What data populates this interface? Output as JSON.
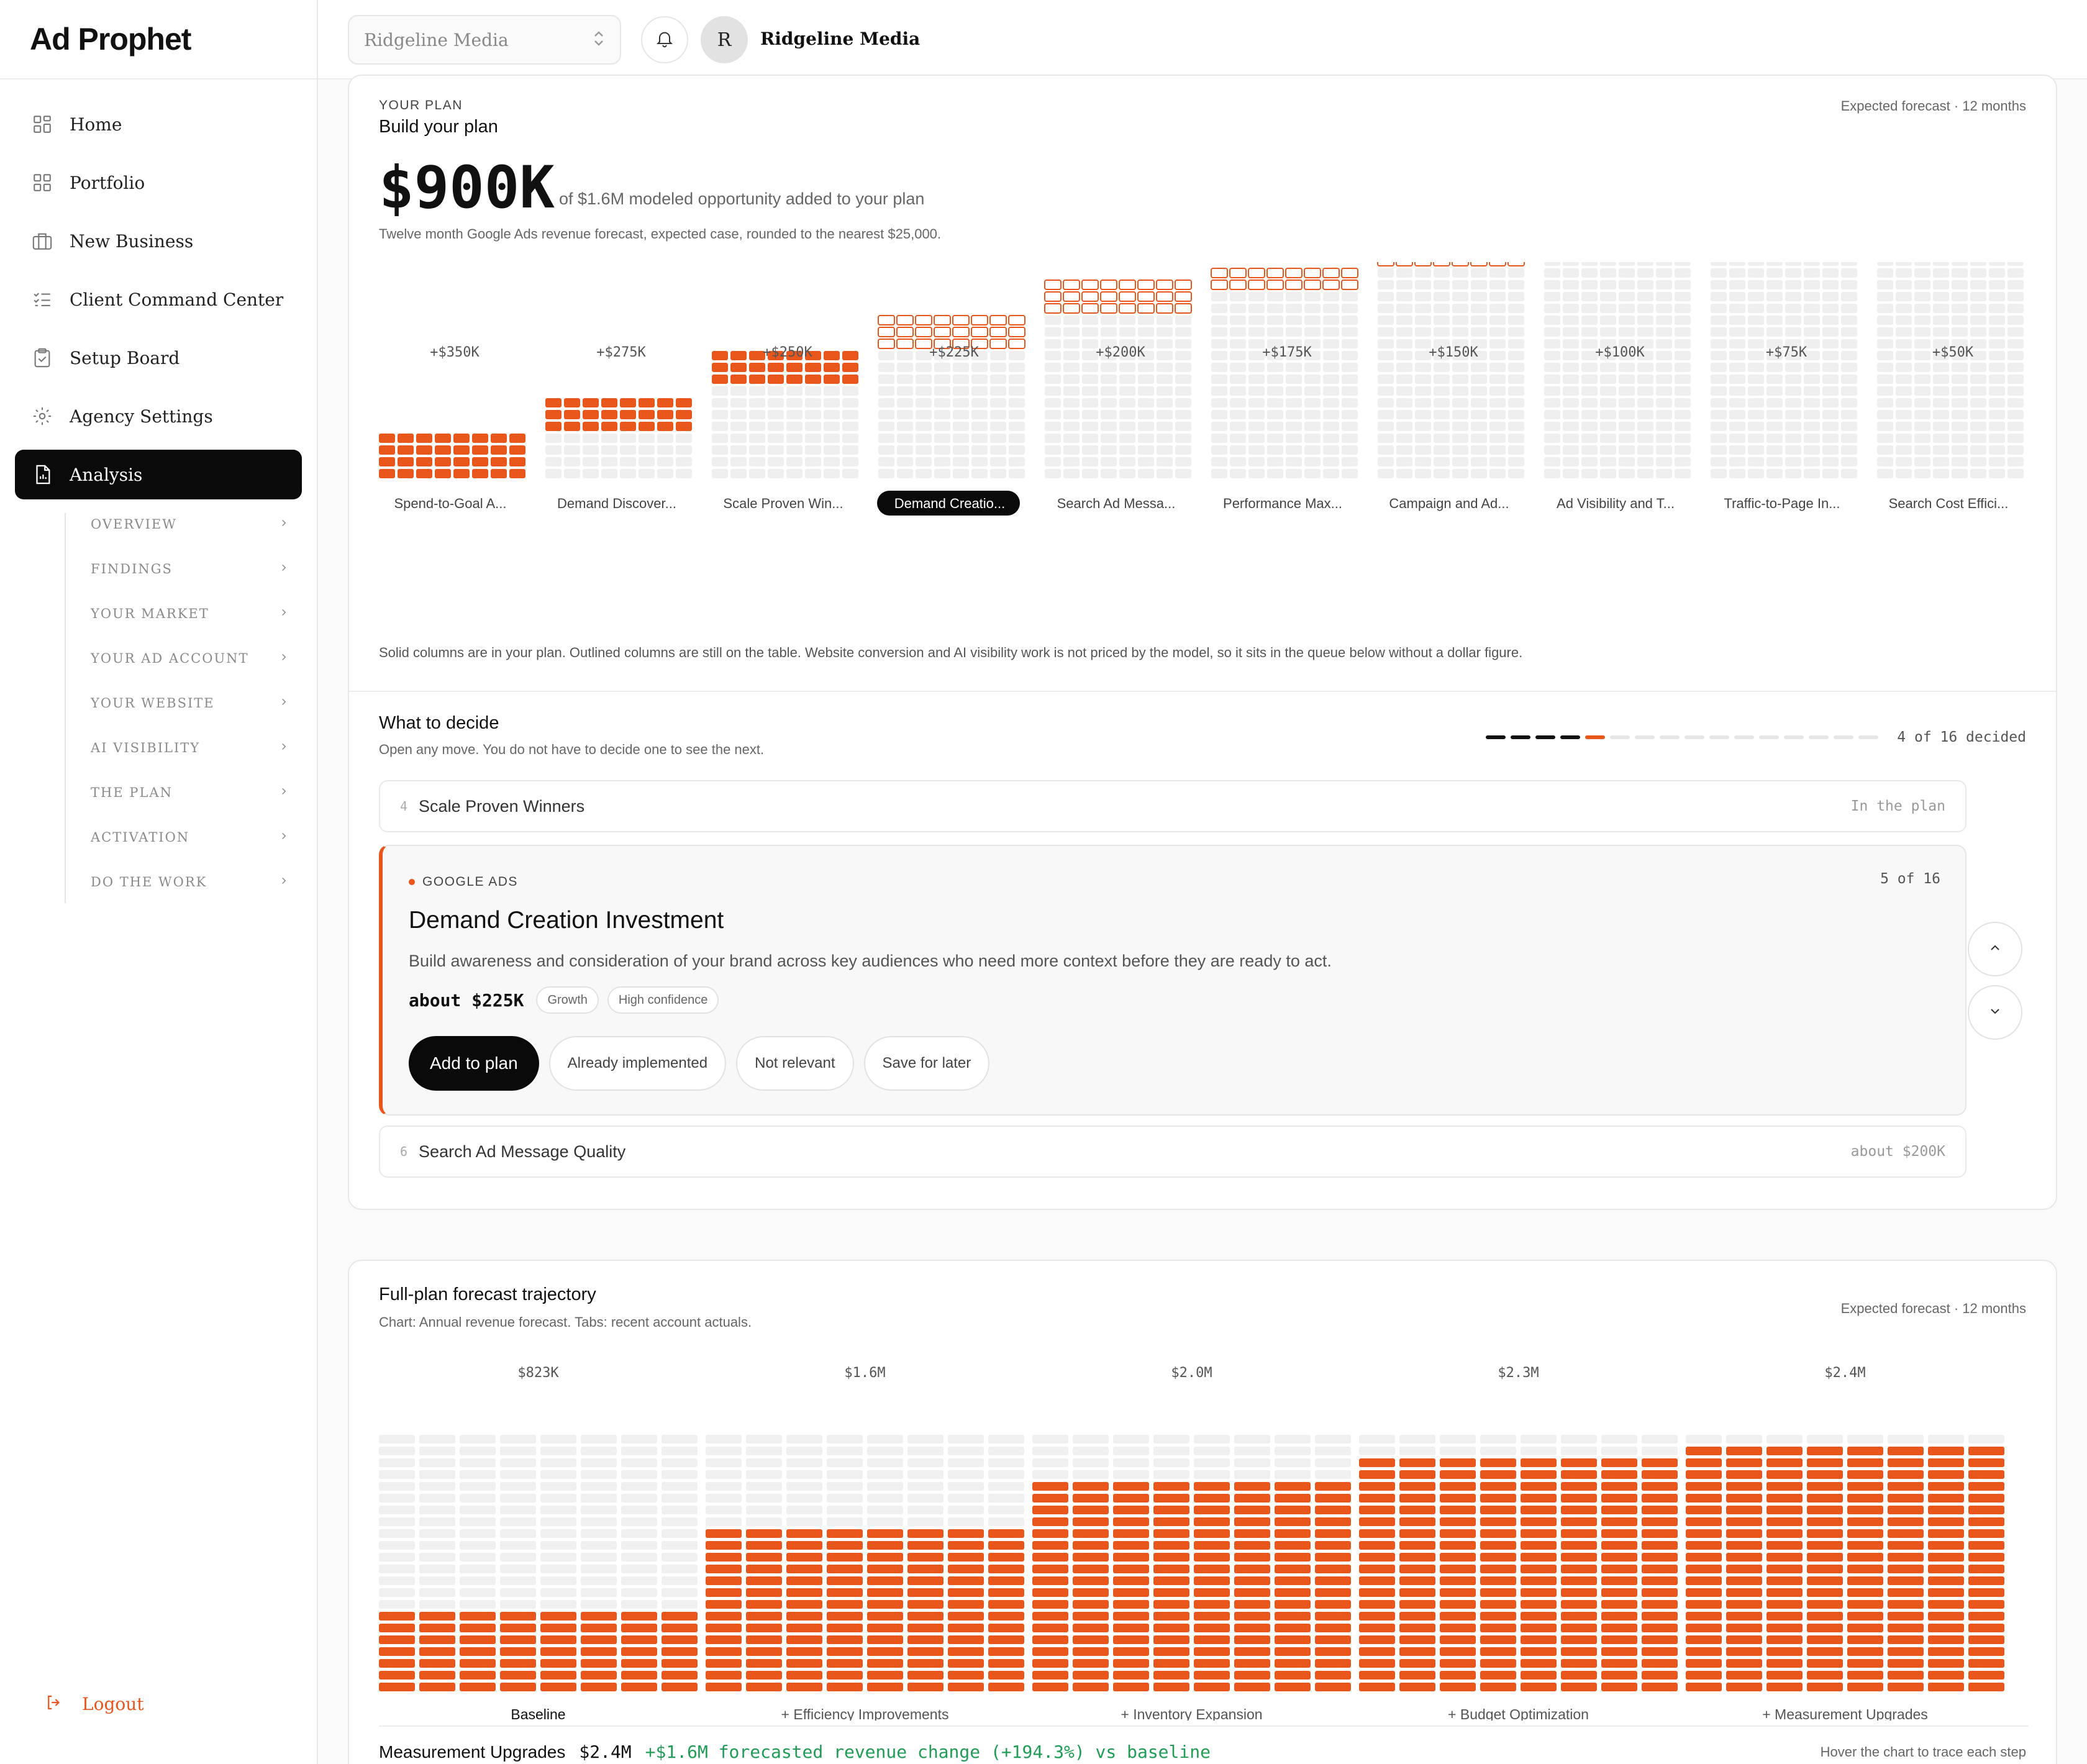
{
  "app": {
    "name": "Ad Prophet"
  },
  "topbar": {
    "workspace": "Ridgeline Media",
    "avatar_initial": "R",
    "user_name": "Ridgeline Media"
  },
  "sidebar": {
    "items": [
      {
        "label": "Home",
        "icon": "grid-icon"
      },
      {
        "label": "Portfolio",
        "icon": "grid-icon"
      },
      {
        "label": "New Business",
        "icon": "briefcase-icon"
      },
      {
        "label": "Client Command Center",
        "icon": "checklist-icon"
      },
      {
        "label": "Setup Board",
        "icon": "clipboard-icon"
      },
      {
        "label": "Agency Settings",
        "icon": "gear-icon"
      },
      {
        "label": "Analysis",
        "icon": "report-icon",
        "active": true
      }
    ],
    "subitems": [
      "OVERVIEW",
      "FINDINGS",
      "YOUR MARKET",
      "YOUR AD ACCOUNT",
      "YOUR WEBSITE",
      "AI VISIBILITY",
      "THE PLAN",
      "ACTIVATION",
      "DO THE WORK"
    ],
    "logout": "Logout"
  },
  "plan": {
    "eyebrow": "YOUR PLAN",
    "title": "Build your plan",
    "forecast_note": "Expected forecast · 12 months",
    "amount": "$900K",
    "amount_caption": "of $1.6M modeled opportunity added to your plan",
    "subtitle": "Twelve month Google Ads revenue forecast, expected case, rounded to the nearest $25,000.",
    "note": "Solid columns are in your plan. Outlined columns are still on the table. Website conversion and AI visibility work is not priced by the model, so it sits in the queue below without a dollar figure.",
    "accent": "#e8561c"
  },
  "chart_data": [
    {
      "type": "bar",
      "title": "",
      "categories": [
        "Spend-to-Goal A...",
        "Demand Discover...",
        "Scale Proven Win...",
        "Demand Creatio...",
        "Search Ad Messa...",
        "Performance Max...",
        "Campaign and Ad...",
        "Ad Visibility and T...",
        "Traffic-to-Page In...",
        "Search Cost Effici..."
      ],
      "values": [
        350,
        275,
        250,
        225,
        200,
        175,
        150,
        100,
        75,
        50
      ],
      "value_labels": [
        "+$350K",
        "+$275K",
        "+$250K",
        "+$225K",
        "+$200K",
        "+$175K",
        "+$150K",
        "+$100K",
        "+$75K",
        "+$50K"
      ],
      "unit": "$K",
      "in_plan": [
        true,
        true,
        true,
        false,
        false,
        false,
        false,
        false,
        false,
        false
      ],
      "selected_index": 3,
      "cumulative_stack": true,
      "ylim": [
        0,
        1600
      ]
    },
    {
      "type": "bar",
      "title": "",
      "categories": [
        "Baseline",
        "+ Efficiency Improvements",
        "+ Inventory Expansion",
        "+ Budget Optimization",
        "+ Measurement Upgrades"
      ],
      "values": [
        823,
        1600,
        2000,
        2300,
        2400
      ],
      "value_labels": [
        "$823K",
        "$1.6M",
        "$2.0M",
        "$2.3M",
        "$2.4M"
      ],
      "unit": "$K",
      "ylim": [
        0,
        2500
      ]
    }
  ],
  "decide": {
    "title": "What to decide",
    "subtitle": "Open any move. You do not have to decide one to see the next.",
    "progress": {
      "decided": 4,
      "current": 5,
      "total": 16
    },
    "decided_label": "4 of 16 decided",
    "prev": {
      "num": "4",
      "title": "Scale Proven Winners",
      "status": "In the plan"
    },
    "focus": {
      "eyebrow": "GOOGLE ADS",
      "count": "5 of 16",
      "title": "Demand Creation Investment",
      "description": "Build awareness and consideration of your brand across key audiences who need more context before they are ready to act.",
      "amount": "about $225K",
      "tags": [
        "Growth",
        "High confidence"
      ],
      "actions": {
        "add": "Add to plan",
        "implemented": "Already implemented",
        "not_relevant": "Not relevant",
        "later": "Save for later"
      }
    },
    "next": {
      "num": "6",
      "title": "Search Ad Message Quality",
      "status": "about $200K"
    }
  },
  "trajectory": {
    "title": "Full-plan forecast trajectory",
    "subtitle": "Chart: Annual revenue forecast. Tabs: recent account actuals.",
    "forecast_note": "Expected forecast · 12 months",
    "summary_step": "Measurement Upgrades",
    "summary_value": "$2.4M",
    "summary_change": "+$1.6M forecasted revenue change (+194.3%) vs baseline",
    "hint": "Hover the chart to trace each step"
  }
}
